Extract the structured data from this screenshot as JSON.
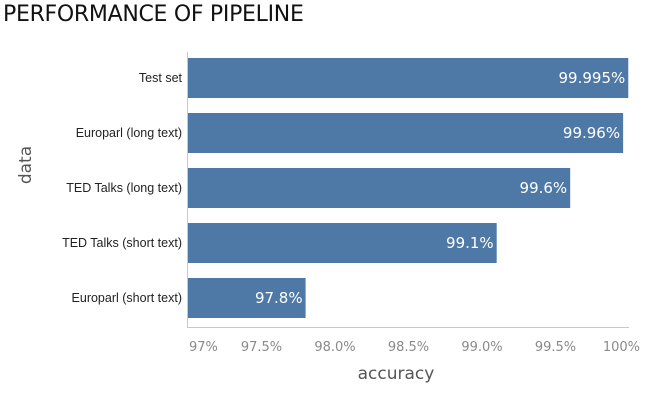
{
  "chart_data": {
    "type": "bar",
    "orientation": "horizontal",
    "title": "PERFORMANCE OF PIPELINE",
    "xlabel": "accuracy",
    "ylabel": "data",
    "categories": [
      "Test set",
      "Europarl  (long text)",
      "TED Talks (long text)",
      "TED Talks (short text)",
      "Europarl (short text)"
    ],
    "values": [
      99.995,
      99.96,
      99.6,
      99.1,
      97.8
    ],
    "value_labels": [
      "99.995%",
      "99.96%",
      "99.6%",
      "99.1%",
      "97.8%"
    ],
    "xlim": [
      97,
      100
    ],
    "xticks": [
      97,
      97.5,
      98,
      98.5,
      99,
      99.5,
      100
    ],
    "xtick_labels": [
      "97%",
      "97.5%",
      "98.0%",
      "98.5%",
      "99.0%",
      "99.5%",
      "100%"
    ],
    "bar_color": "#4e79a7",
    "grid": false
  }
}
